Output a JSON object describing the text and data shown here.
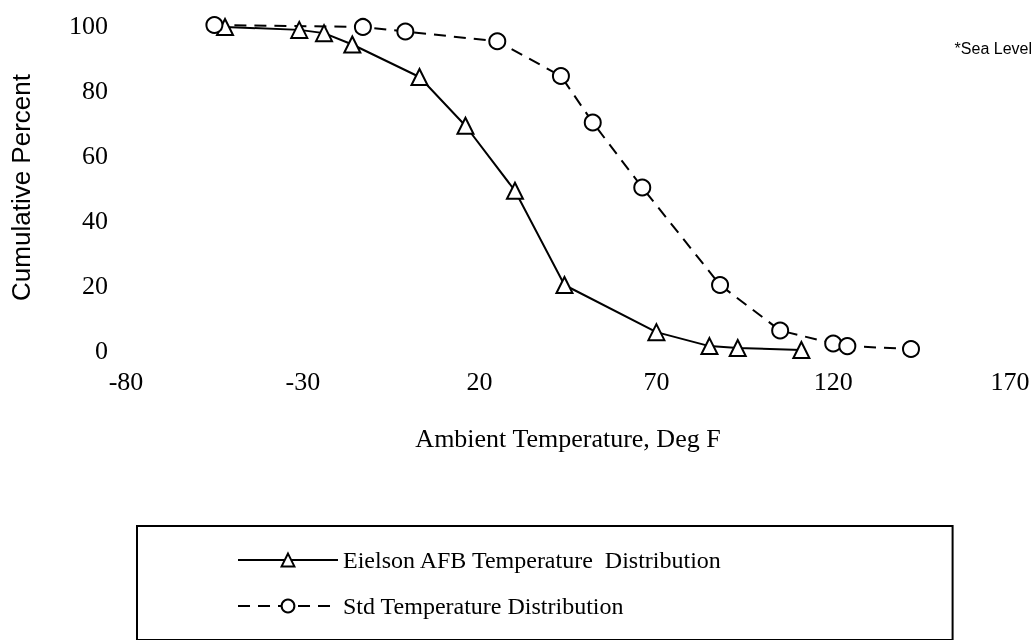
{
  "chart_data": {
    "type": "line",
    "xlabel": "Ambient Temperature, Deg F",
    "ylabel": "Cumulative Percent",
    "annotations": [
      "*Sea Level"
    ],
    "xlim": [
      -80,
      170
    ],
    "xticks": [
      -80,
      -30,
      20,
      70,
      120,
      170
    ],
    "ylim": [
      0,
      100
    ],
    "yticks": [
      0,
      20,
      40,
      60,
      80,
      100
    ],
    "grid": false,
    "legend": "bottom",
    "series": [
      {
        "name": "Eielson AFB Temperature  Distribution",
        "color": "#000000",
        "marker": "triangle",
        "line_style": "solid",
        "x": [
          -52,
          -31,
          -24,
          -16,
          3,
          16,
          30,
          44,
          70,
          85,
          93,
          111
        ],
        "values": [
          99.4,
          98.5,
          97.5,
          94,
          84,
          69,
          49,
          20,
          5.5,
          1.2,
          0.6,
          0
        ]
      },
      {
        "name": "Std Temperature Distribution",
        "color": "#000000",
        "marker": "circle",
        "line_style": "dashed",
        "x": [
          -55,
          -13,
          -1,
          25,
          43,
          52,
          66,
          88,
          105,
          120,
          124,
          142
        ],
        "values": [
          100,
          99.4,
          98,
          95,
          84.3,
          70,
          50,
          20,
          6,
          2,
          1.2,
          0.3
        ]
      }
    ]
  }
}
